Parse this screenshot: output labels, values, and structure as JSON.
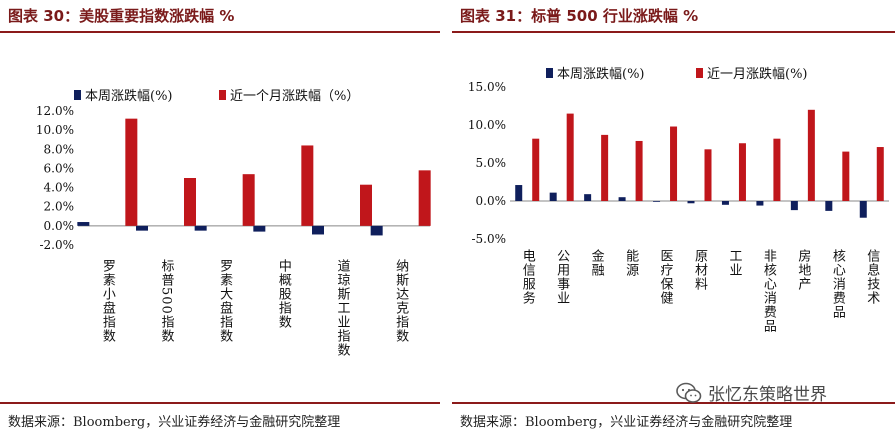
{
  "colors": {
    "week": "#0f1f5c",
    "month": "#c0161b"
  },
  "left": {
    "title": "图表 30：美股重要指数涨跌幅 %",
    "source": "数据来源：Bloomberg，兴业证券经济与金融研究院整理",
    "chart_data": {
      "type": "bar",
      "categories": [
        "罗素小盘指数",
        "标普500指数",
        "罗素大盘指数",
        "中概股指数",
        "道琼斯工业指数",
        "纳斯达克指数"
      ],
      "series": [
        {
          "name": "本周涨跌幅(%)",
          "values": [
            0.4,
            -0.5,
            -0.5,
            -0.6,
            -0.9,
            -1.0
          ]
        },
        {
          "name": "近一个月涨跌幅（%）",
          "values": [
            11.2,
            5.0,
            5.4,
            8.4,
            4.3,
            5.8
          ]
        }
      ],
      "ylim": [
        -2,
        12
      ],
      "yticks": [
        -2,
        0,
        2,
        4,
        6,
        8,
        10,
        12
      ],
      "ytick_labels": [
        "-2.0%",
        "0.0%",
        "2.0%",
        "4.0%",
        "6.0%",
        "8.0%",
        "10.0%",
        "12.0%"
      ],
      "legend": "top"
    }
  },
  "right": {
    "title": "图表 31：标普 500 行业涨跌幅 %",
    "source": "数据来源：Bloomberg，兴业证券经济与金融研究院整理",
    "chart_data": {
      "type": "bar",
      "categories": [
        "电信服务",
        "公用事业",
        "金融",
        "能源",
        "医疗保健",
        "原材料",
        "工业",
        "非核心消费品",
        "房地产",
        "核心消费品",
        "信息技术"
      ],
      "series": [
        {
          "name": "本周涨跌幅(%)",
          "values": [
            2.1,
            1.1,
            0.9,
            0.5,
            -0.1,
            -0.3,
            -0.5,
            -0.6,
            -1.2,
            -1.3,
            -2.2
          ]
        },
        {
          "name": "近一月涨跌幅(%)",
          "values": [
            8.2,
            11.5,
            8.7,
            7.9,
            9.8,
            6.8,
            7.6,
            8.2,
            12.0,
            6.5,
            7.1
          ]
        }
      ],
      "ylim": [
        -5,
        15
      ],
      "yticks": [
        -5,
        0,
        5,
        10,
        15
      ],
      "ytick_labels": [
        "-5.0%",
        "0.0%",
        "5.0%",
        "10.0%",
        "15.0%"
      ],
      "legend": "top"
    }
  },
  "watermark": {
    "text": "张忆东策略世界",
    "icon": "wechat-icon"
  }
}
